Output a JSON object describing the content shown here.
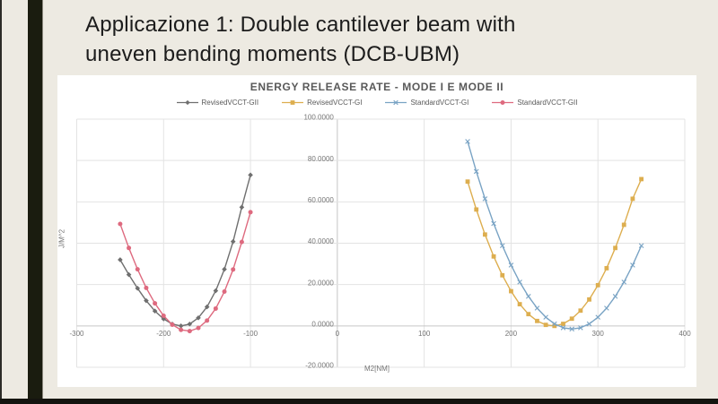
{
  "slide": {
    "title_line1": "Applicazione 1: Double cantilever beam with",
    "title_line2": "uneven bending moments (DCB-UBM)"
  },
  "colors": {
    "slide_background": "#EDEAE2",
    "accent_bar": "#1A1C0F",
    "chart_background": "#FFFFFF",
    "gridline": "#E3E3E3",
    "axis_line": "#C6C6C6",
    "tick_label": "#757575",
    "chart_title": "#595959"
  },
  "chart_data": {
    "type": "line",
    "title": "ENERGY RELEASE RATE - MODE I E MODE II",
    "xlabel": "M2[NM]",
    "ylabel": "J/M^2",
    "xlim": [
      -300,
      400
    ],
    "ylim": [
      -20,
      100
    ],
    "grid": true,
    "legend_position": "top",
    "x_ticks": [
      -300,
      -200,
      -100,
      0,
      100,
      200,
      300,
      400
    ],
    "x_tick_labels": [
      "-300",
      "-200",
      "-100",
      "0",
      "100",
      "200",
      "300",
      "400"
    ],
    "y_ticks": [
      100,
      80,
      60,
      40,
      20,
      0,
      -20
    ],
    "y_tick_labels": [
      "100.0000",
      "80.0000",
      "60.0000",
      "40.0000",
      "20.0000",
      "0.0000",
      "-20.0000"
    ],
    "series": [
      {
        "name": "RevisedVCCT-GII",
        "color": "#6F6F6F",
        "marker": "diamond",
        "x": [
          -250,
          -240,
          -230,
          -220,
          -210,
          -200,
          -190,
          -180,
          -170,
          -160,
          -150,
          -140,
          -130,
          -120,
          -110,
          -100
        ],
        "y": [
          32.0,
          24.8,
          18.2,
          12.2,
          7.2,
          3.4,
          0.9,
          0.0,
          0.9,
          3.9,
          9.2,
          17.0,
          27.4,
          40.8,
          57.4,
          73.0
        ]
      },
      {
        "name": "RevisedVCCT-GI",
        "color": "#DDAE4F",
        "marker": "square",
        "x": [
          150,
          160,
          170,
          180,
          190,
          200,
          210,
          220,
          230,
          240,
          250,
          260,
          270,
          280,
          290,
          300,
          310,
          320,
          330,
          340,
          350
        ],
        "y": [
          69.8,
          56.3,
          44.2,
          33.6,
          24.5,
          16.8,
          10.5,
          5.7,
          2.4,
          0.5,
          0.0,
          1.0,
          3.5,
          7.4,
          12.8,
          19.7,
          27.9,
          37.7,
          48.9,
          61.5,
          71.0
        ]
      },
      {
        "name": "StandardVCCT-GI",
        "color": "#79A3C4",
        "marker": "x",
        "x": [
          150,
          160,
          170,
          180,
          190,
          200,
          210,
          220,
          230,
          240,
          250,
          260,
          270,
          280,
          290,
          300,
          310,
          320,
          330,
          340,
          350
        ],
        "y": [
          89.2,
          74.7,
          61.5,
          49.5,
          38.8,
          29.4,
          21.2,
          14.3,
          8.6,
          4.2,
          1.0,
          -0.9,
          -1.5,
          -0.9,
          1.0,
          4.2,
          8.6,
          14.3,
          21.2,
          29.4,
          38.8
        ]
      },
      {
        "name": "StandardVCCT-GII",
        "color": "#DE6A7F",
        "marker": "circle",
        "x": [
          -250,
          -240,
          -230,
          -220,
          -210,
          -200,
          -190,
          -180,
          -170,
          -160,
          -150,
          -140,
          -130,
          -120,
          -110,
          -100
        ],
        "y": [
          49.3,
          37.7,
          27.4,
          18.4,
          10.9,
          4.9,
          0.6,
          -1.9,
          -2.5,
          -1.0,
          2.6,
          8.4,
          16.6,
          27.3,
          40.6,
          55.0
        ]
      }
    ]
  }
}
